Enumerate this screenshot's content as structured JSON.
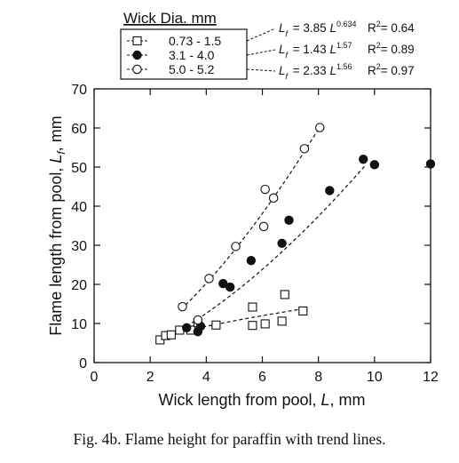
{
  "chart_data": {
    "type": "scatter",
    "xlabel_main": "Wick length from pool, ",
    "xlabel_var": "L",
    "xlabel_unit": ", mm",
    "ylabel_main": "Flame length from pool, ",
    "ylabel_var": "L",
    "ylabel_sub": "f",
    "ylabel_unit": ", mm",
    "xlim": [
      0,
      12
    ],
    "ylim": [
      0,
      70
    ],
    "xticks": [
      0,
      2,
      4,
      6,
      8,
      10,
      12
    ],
    "yticks": [
      0,
      10,
      20,
      30,
      40,
      50,
      60,
      70
    ],
    "grid": false,
    "legend_title": "Wick Dia. mm",
    "legend_position": "top-left, outside plot",
    "series": [
      {
        "name": "0.73 - 1.5",
        "marker": "open-square",
        "x": [
          2.35,
          2.55,
          2.75,
          3.05,
          3.45,
          3.7,
          4.35,
          5.65,
          6.1,
          6.7,
          7.45,
          5.65,
          6.8
        ],
        "y": [
          5.8,
          6.9,
          7.1,
          8.3,
          8.3,
          10.2,
          9.6,
          9.5,
          9.9,
          10.6,
          13.2,
          14.2,
          17.4
        ],
        "fit": {
          "label_prefix": "= 3.85 ",
          "exponent": "0.634",
          "r2_value": "= 0.64",
          "a": 3.85,
          "b": 0.634,
          "xrange": [
            3.0,
            7.5
          ]
        }
      },
      {
        "name": "3.1 - 4.0",
        "marker": "filled-circle",
        "x": [
          3.3,
          3.7,
          3.8,
          4.6,
          4.85,
          5.6,
          6.7,
          6.95,
          8.4,
          9.6,
          10.0,
          12.0
        ],
        "y": [
          8.9,
          7.9,
          9.3,
          20.2,
          19.3,
          26.1,
          30.5,
          36.4,
          44.0,
          52.0,
          50.6,
          50.8
        ],
        "fit": {
          "label_prefix": "= 1.43 ",
          "exponent": "1.57",
          "r2_value": "= 0.89",
          "a": 1.43,
          "b": 1.57,
          "xrange": [
            3.3,
            9.7
          ]
        }
      },
      {
        "name": "5.0 - 5.2",
        "marker": "open-circle",
        "x": [
          3.15,
          3.7,
          4.1,
          5.05,
          6.05,
          6.4,
          7.5,
          8.05,
          6.1
        ],
        "y": [
          14.3,
          10.9,
          21.5,
          29.7,
          34.8,
          42.1,
          54.7,
          60.1,
          44.3
        ],
        "fit": {
          "label_prefix": "= 2.33 ",
          "exponent": "1.56",
          "r2_value": "= 0.97",
          "a": 2.33,
          "b": 1.56,
          "xrange": [
            3.1,
            8.0
          ]
        }
      }
    ],
    "fit_var": "L",
    "fit_sub": "f",
    "r2_label": "R",
    "r2_sup": "2"
  },
  "caption": "Fig. 4b.  Flame height for paraffin with trend lines."
}
